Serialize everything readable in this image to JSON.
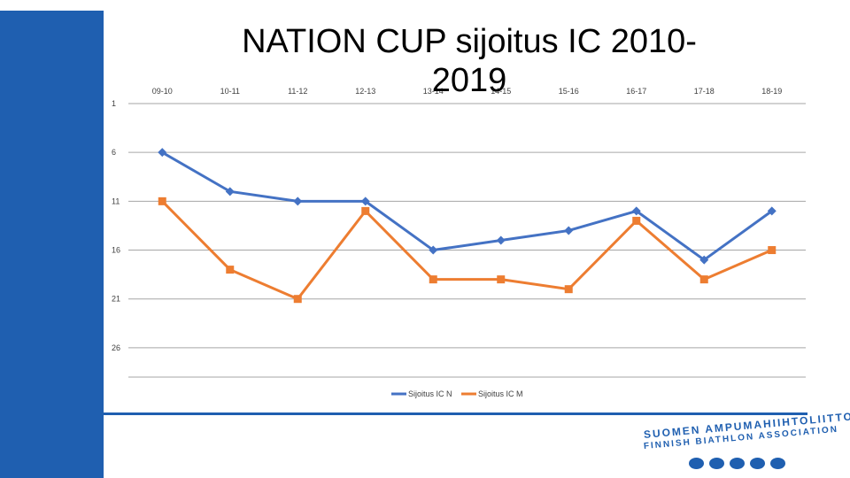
{
  "chart_data": {
    "type": "line",
    "title": "NATION CUP sijoitus IC 2010-2019",
    "categories": [
      "09-10",
      "10-11",
      "11-12",
      "12-13",
      "13-14",
      "14-15",
      "15-16",
      "16-17",
      "17-18",
      "18-19"
    ],
    "yticks": [
      1,
      6,
      11,
      16,
      21,
      26
    ],
    "ylim": [
      1,
      29
    ],
    "y_inverted": true,
    "series": [
      {
        "name": "Sijoitus IC N",
        "color": "#4472c4",
        "marker": "diamond",
        "values": [
          6,
          10,
          11,
          11,
          16,
          15,
          14,
          12,
          17,
          12
        ]
      },
      {
        "name": "Sijoitus IC M",
        "color": "#ed7d31",
        "marker": "square",
        "values": [
          11,
          18,
          21,
          12,
          19,
          19,
          20,
          13,
          19,
          16
        ]
      }
    ],
    "grid": true,
    "legend": "bottom"
  },
  "logo": {
    "line1": "SUOMEN AMPUMAHIIHTOLIITTO",
    "line2": "FINNISH BIATHLON ASSOCIATION"
  }
}
